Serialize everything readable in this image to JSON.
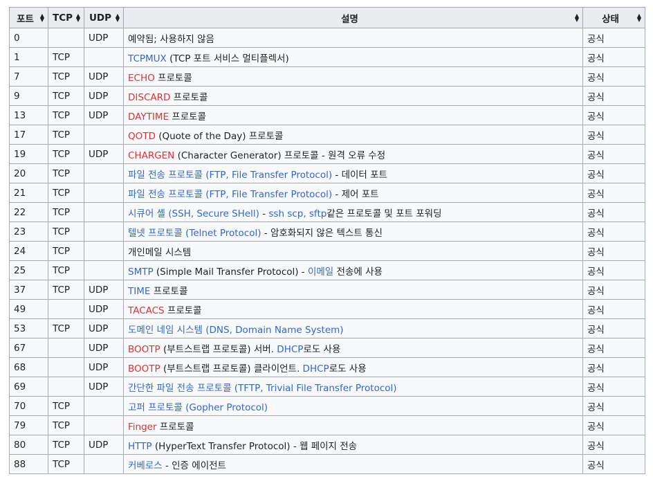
{
  "headers": {
    "port": "포트",
    "tcp": "TCP",
    "udp": "UDP",
    "desc": "설명",
    "state": "상태"
  },
  "rows": [
    {
      "port": "0",
      "tcp": "",
      "udp": "UDP",
      "desc": [
        {
          "t": "예약됨; 사용하지 않음",
          "c": "plain"
        }
      ],
      "state": "공식"
    },
    {
      "port": "1",
      "tcp": "TCP",
      "udp": "",
      "desc": [
        {
          "t": "TCPMUX",
          "c": "blue"
        },
        {
          "t": " (TCP 포트 서비스 멀티플렉서)",
          "c": "plain"
        }
      ],
      "state": "공식"
    },
    {
      "port": "7",
      "tcp": "TCP",
      "udp": "UDP",
      "desc": [
        {
          "t": "ECHO",
          "c": "red"
        },
        {
          "t": " 프로토콜",
          "c": "plain"
        }
      ],
      "state": "공식"
    },
    {
      "port": "9",
      "tcp": "TCP",
      "udp": "UDP",
      "desc": [
        {
          "t": "DISCARD",
          "c": "red"
        },
        {
          "t": " 프로토콜",
          "c": "plain"
        }
      ],
      "state": "공식"
    },
    {
      "port": "13",
      "tcp": "TCP",
      "udp": "UDP",
      "desc": [
        {
          "t": "DAYTIME",
          "c": "red"
        },
        {
          "t": " 프로토콜",
          "c": "plain"
        }
      ],
      "state": "공식"
    },
    {
      "port": "17",
      "tcp": "TCP",
      "udp": "",
      "desc": [
        {
          "t": "QOTD",
          "c": "red"
        },
        {
          "t": " (Quote of the Day) 프로토콜",
          "c": "plain"
        }
      ],
      "state": "공식"
    },
    {
      "port": "19",
      "tcp": "TCP",
      "udp": "UDP",
      "desc": [
        {
          "t": "CHARGEN",
          "c": "red"
        },
        {
          "t": " (Character Generator) 프로토콜 - 원격 오류 수정",
          "c": "plain"
        }
      ],
      "state": "공식"
    },
    {
      "port": "20",
      "tcp": "TCP",
      "udp": "",
      "desc": [
        {
          "t": "파일 전송 프로토콜 (FTP, File Transfer Protocol)",
          "c": "blue"
        },
        {
          "t": " - 데이터 포트",
          "c": "plain"
        }
      ],
      "state": "공식"
    },
    {
      "port": "21",
      "tcp": "TCP",
      "udp": "",
      "desc": [
        {
          "t": "파일 전송 프로토콜 (FTP, File Transfer Protocol)",
          "c": "blue"
        },
        {
          "t": " - 제어 포트",
          "c": "plain"
        }
      ],
      "state": "공식"
    },
    {
      "port": "22",
      "tcp": "TCP",
      "udp": "",
      "desc": [
        {
          "t": "시큐어 셸 (SSH, Secure SHell)",
          "c": "blue"
        },
        {
          "t": " - ",
          "c": "plain"
        },
        {
          "t": "ssh scp, sftp",
          "c": "blue"
        },
        {
          "t": "같은 프로토콜 및 포트 포워딩",
          "c": "plain"
        }
      ],
      "state": "공식"
    },
    {
      "port": "23",
      "tcp": "TCP",
      "udp": "",
      "desc": [
        {
          "t": "텔넷 프로토콜 (Telnet Protocol)",
          "c": "blue"
        },
        {
          "t": " - 암호화되지 않은 텍스트 통신",
          "c": "plain"
        }
      ],
      "state": "공식"
    },
    {
      "port": "24",
      "tcp": "TCP",
      "udp": "",
      "desc": [
        {
          "t": "개인메일 시스템",
          "c": "plain"
        }
      ],
      "state": "공식"
    },
    {
      "port": "25",
      "tcp": "TCP",
      "udp": "",
      "desc": [
        {
          "t": "SMTP",
          "c": "blue"
        },
        {
          "t": " (Simple Mail Transfer Protocol) - ",
          "c": "plain"
        },
        {
          "t": "이메일",
          "c": "blue"
        },
        {
          "t": " 전송에 사용",
          "c": "plain"
        }
      ],
      "state": "공식"
    },
    {
      "port": "37",
      "tcp": "TCP",
      "udp": "UDP",
      "desc": [
        {
          "t": "TIME",
          "c": "blue"
        },
        {
          "t": " 프로토콜",
          "c": "plain"
        }
      ],
      "state": "공식"
    },
    {
      "port": "49",
      "tcp": "",
      "udp": "UDP",
      "desc": [
        {
          "t": "TACACS",
          "c": "red"
        },
        {
          "t": " 프로토콜",
          "c": "plain"
        }
      ],
      "state": "공식"
    },
    {
      "port": "53",
      "tcp": "TCP",
      "udp": "UDP",
      "desc": [
        {
          "t": "도메인 네임 시스템 (DNS, Domain Name System)",
          "c": "blue"
        }
      ],
      "state": "공식"
    },
    {
      "port": "67",
      "tcp": "",
      "udp": "UDP",
      "desc": [
        {
          "t": "BOOTP",
          "c": "red"
        },
        {
          "t": " (부트스트랩 프로토콜) 서버. ",
          "c": "plain"
        },
        {
          "t": "DHCP",
          "c": "blue"
        },
        {
          "t": "로도 사용",
          "c": "plain"
        }
      ],
      "state": "공식"
    },
    {
      "port": "68",
      "tcp": "",
      "udp": "UDP",
      "desc": [
        {
          "t": "BOOTP",
          "c": "red"
        },
        {
          "t": " (부트스트랩 프로토콜) 클라이언트. ",
          "c": "plain"
        },
        {
          "t": "DHCP",
          "c": "blue"
        },
        {
          "t": "로도 사용",
          "c": "plain"
        }
      ],
      "state": "공식"
    },
    {
      "port": "69",
      "tcp": "",
      "udp": "UDP",
      "desc": [
        {
          "t": "간단한 파일 전송 프로토콜 (TFTP, Trivial File Transfer Protocol)",
          "c": "blue"
        }
      ],
      "state": "공식"
    },
    {
      "port": "70",
      "tcp": "TCP",
      "udp": "",
      "desc": [
        {
          "t": "고퍼 프로토콜 (Gopher Protocol)",
          "c": "blue"
        }
      ],
      "state": "공식"
    },
    {
      "port": "79",
      "tcp": "TCP",
      "udp": "",
      "desc": [
        {
          "t": "Finger",
          "c": "red"
        },
        {
          "t": " 프로토콜",
          "c": "plain"
        }
      ],
      "state": "공식"
    },
    {
      "port": "80",
      "tcp": "TCP",
      "udp": "UDP",
      "desc": [
        {
          "t": "HTTP",
          "c": "blue"
        },
        {
          "t": " (HyperText Transfer Protocol) - 웹 페이지 전송",
          "c": "plain"
        }
      ],
      "state": "공식"
    },
    {
      "port": "88",
      "tcp": "TCP",
      "udp": "",
      "desc": [
        {
          "t": "커베로스",
          "c": "blue"
        },
        {
          "t": " - 인증 에이전트",
          "c": "plain"
        }
      ],
      "state": "공식"
    }
  ]
}
